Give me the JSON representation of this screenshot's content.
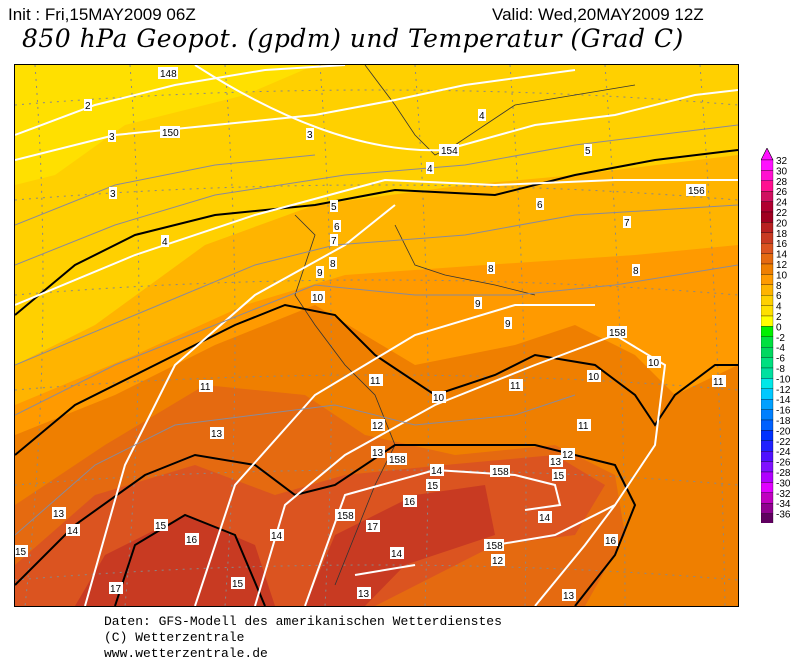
{
  "header": {
    "init": "Init : Fri,15MAY2009 06Z",
    "valid": "Valid: Wed,20MAY2009 12Z",
    "title": "850 hPa Geopot. (gpdm) und Temperatur (Grad C)"
  },
  "map": {
    "geopotential_labels": [
      "148",
      "150",
      "154",
      "156",
      "158",
      "158",
      "158",
      "158",
      "158"
    ],
    "temperature_labels": [
      "2",
      "3",
      "3",
      "3",
      "4",
      "4",
      "4",
      "5",
      "5",
      "6",
      "6",
      "7",
      "7",
      "8",
      "8",
      "8",
      "9",
      "9",
      "9",
      "10",
      "10",
      "10",
      "10",
      "11",
      "11",
      "11",
      "11",
      "11",
      "12",
      "12",
      "12",
      "13",
      "13",
      "13",
      "13",
      "13",
      "13",
      "14",
      "14",
      "14",
      "14",
      "14",
      "15",
      "15",
      "15",
      "15",
      "15",
      "16",
      "16",
      "16",
      "17",
      "17"
    ],
    "fill_colors": {
      "t2_4": "#ffe000",
      "t4_6": "#ffd000",
      "t6_8": "#ffb400",
      "t8_10": "#ff9a00",
      "t10_12": "#ef7f00",
      "t12_14": "#e56a10",
      "t14_16": "#db5420",
      "t16_18": "#c83a22"
    }
  },
  "colorbar": {
    "labels": [
      "32",
      "30",
      "28",
      "26",
      "24",
      "22",
      "20",
      "18",
      "16",
      "14",
      "12",
      "10",
      "8",
      "6",
      "4",
      "2",
      "0",
      "-2",
      "-4",
      "-6",
      "-8",
      "-10",
      "-12",
      "-14",
      "-16",
      "-18",
      "-20",
      "-22",
      "-24",
      "-26",
      "-28",
      "-30",
      "-32",
      "-34",
      "-36"
    ],
    "colors": [
      "#ff10ff",
      "#ff10d0",
      "#ff1090",
      "#d01060",
      "#b00030",
      "#a00020",
      "#b82020",
      "#c83a22",
      "#db5420",
      "#e56a10",
      "#ef7f00",
      "#ff9a00",
      "#ffb400",
      "#ffd000",
      "#ffe000",
      "#ffff00",
      "#00f000",
      "#00e040",
      "#00d860",
      "#00e080",
      "#00e0a0",
      "#00e8e8",
      "#00c8ff",
      "#00a0ff",
      "#0080ff",
      "#0060ff",
      "#0030ff",
      "#2020ff",
      "#5010ff",
      "#8010ff",
      "#b000ff",
      "#e000ff",
      "#c000c0",
      "#900090",
      "#600060"
    ]
  },
  "footer": {
    "line1": "Daten: GFS-Modell des amerikanischen Wetterdienstes",
    "line2": "(C) Wetterzentrale",
    "line3": "www.wetterzentrale.de"
  }
}
